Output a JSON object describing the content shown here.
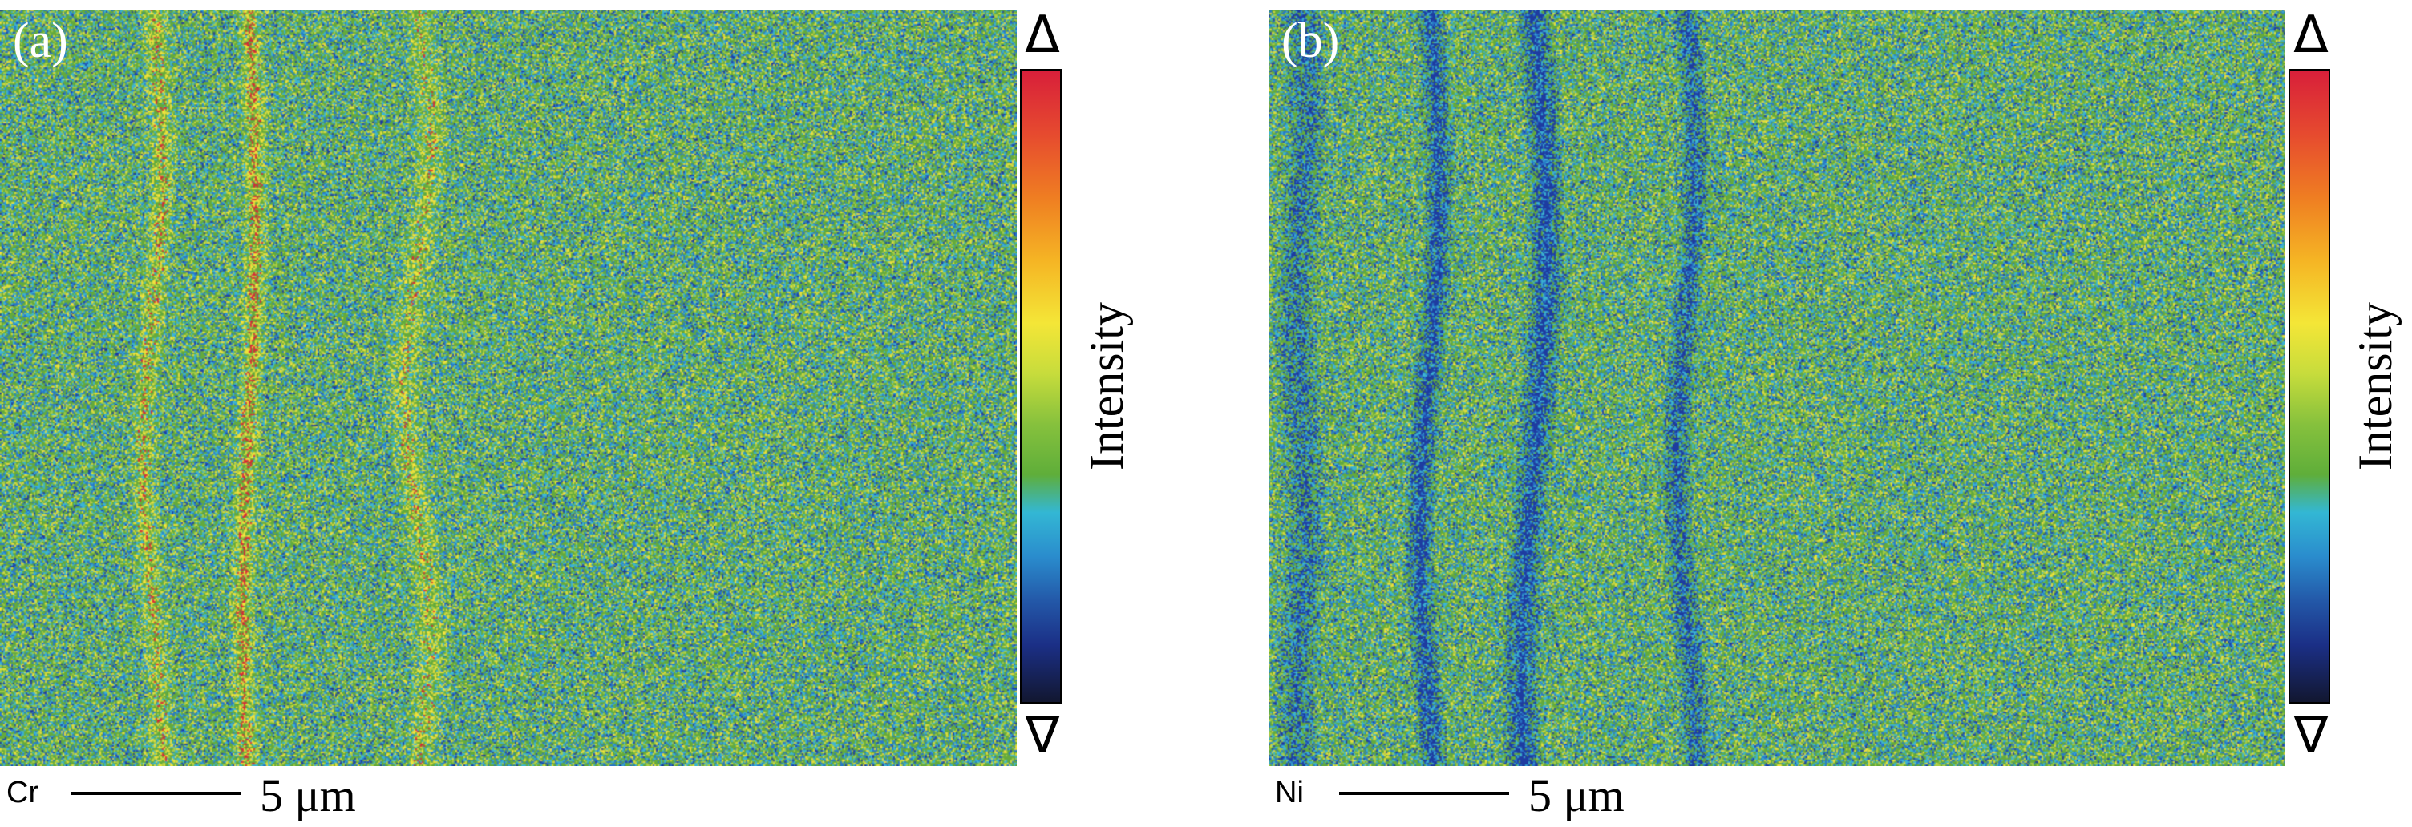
{
  "panels": [
    {
      "id": "a",
      "label": "(a)",
      "element": "Cr",
      "scale_bar": "5 μm",
      "colorbar": {
        "top": "Δ",
        "bottom": "∇",
        "label": "Intensity"
      },
      "map_description_icon": "cr-elemental-map",
      "dominant_color": "#6cae3a"
    },
    {
      "id": "b",
      "label": "(b)",
      "element": "Ni",
      "scale_bar": "5 μm",
      "colorbar": {
        "top": "Δ",
        "bottom": "∇",
        "label": "Intensity"
      },
      "map_description_icon": "ni-elemental-map",
      "dominant_color": "#6cae3a"
    }
  ],
  "colors": {
    "high": "#d81f3a",
    "mid_high": "#f4e637",
    "mid": "#5fae3a",
    "mid_low": "#33b7d4",
    "low": "#1b2f86",
    "min": "#121730"
  }
}
